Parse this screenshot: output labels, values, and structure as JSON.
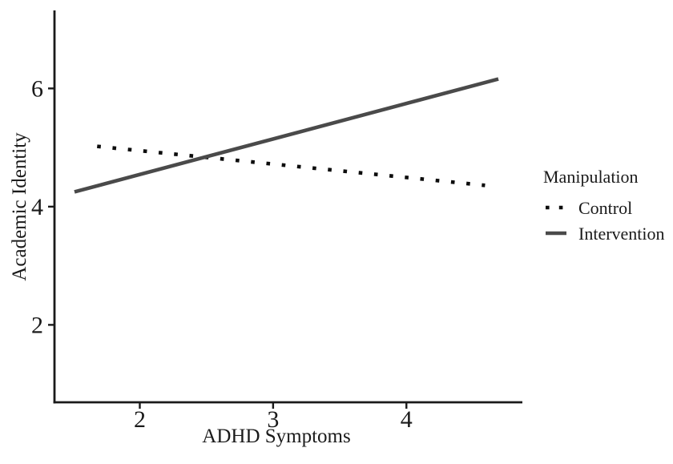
{
  "chart_data": {
    "type": "line",
    "title": "",
    "xlabel": "ADHD Symptoms",
    "ylabel": "Academic Identity",
    "xlim": [
      1.36,
      4.87
    ],
    "ylim": [
      0.69,
      7.32
    ],
    "x_ticks": [
      2,
      3,
      4
    ],
    "y_ticks": [
      2,
      4,
      6
    ],
    "grid": false,
    "background_color": "#ffffff",
    "axis_color": "#1a1a1a",
    "text_color": "#1a1a1a",
    "legend": {
      "title": "Manipulation",
      "position": "right-center",
      "items": [
        {
          "label": "Control",
          "key_style": "dotted",
          "color": "#0d0d0d"
        },
        {
          "label": "Intervention",
          "key_style": "solid",
          "color": "#4a4a4a"
        }
      ]
    },
    "series": [
      {
        "name": "Control",
        "style": "dotted",
        "color": "#0d0d0d",
        "x": [
          1.68,
          4.59
        ],
        "y": [
          5.02,
          4.36
        ]
      },
      {
        "name": "Intervention",
        "style": "solid",
        "color": "#4a4a4a",
        "x": [
          1.51,
          4.69
        ],
        "y": [
          4.25,
          6.16
        ]
      }
    ]
  }
}
